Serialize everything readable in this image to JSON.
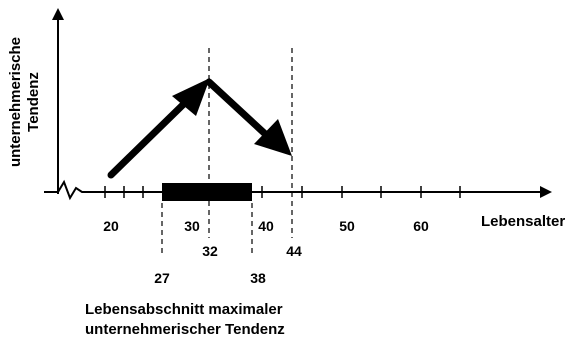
{
  "diagram": {
    "y_axis_label_line1": "unternehmerische",
    "y_axis_label_line2": "Tendenz",
    "x_axis_label": "Lebensalter",
    "tick_labels": {
      "t20": "20",
      "t30": "30",
      "t40": "40",
      "t50": "50",
      "t60": "60"
    },
    "marker_labels": {
      "m32": "32",
      "m44": "44",
      "m27": "27",
      "m38": "38"
    },
    "caption_line1": "Lebensabschnitt maximaler",
    "caption_line2": "unternehmerischer Tendenz"
  }
}
